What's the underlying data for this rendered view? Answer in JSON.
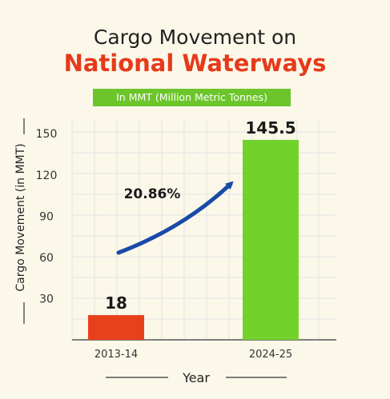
{
  "colors": {
    "title_accent": "#e63a1a",
    "subtitle_bg": "#6cc52a",
    "bar_2013": "#e8401c",
    "bar_2024": "#73d12b",
    "arrow": "#1a4aa8",
    "grid": "#e2e2e2",
    "background": "#fbf8ea"
  },
  "chart_data": {
    "type": "bar",
    "title": "Cargo Movement on",
    "title_line2": "National Waterways",
    "subtitle": "In MMT (Million Metric Tonnes)",
    "xlabel": "Year",
    "ylabel": "Cargo Movement (in MMT)",
    "categories": [
      "2013-14",
      "2024-25"
    ],
    "values": [
      18,
      145.5
    ],
    "value_labels": [
      "18",
      "145.5"
    ],
    "yticks": [
      30,
      60,
      90,
      120,
      150
    ],
    "ytick_labels": [
      "30",
      "60",
      "90",
      "120",
      "150"
    ],
    "ylim": [
      0,
      160
    ],
    "grid": true,
    "annotation": "20.86%"
  }
}
